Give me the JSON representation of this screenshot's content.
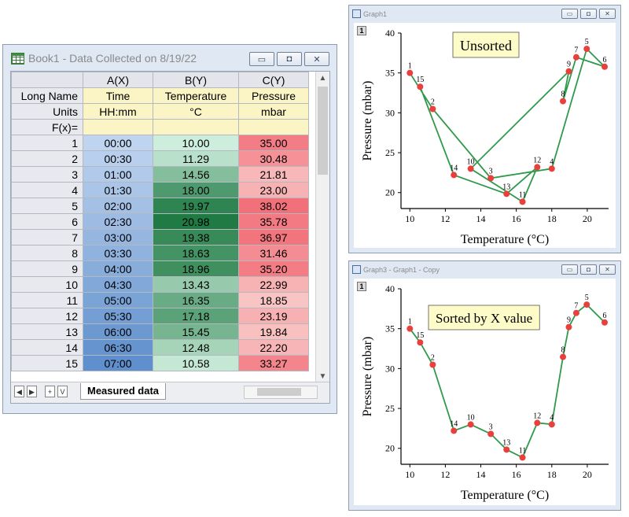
{
  "book": {
    "title": "Book1 - Data Collected on 8/19/22",
    "columns": [
      "A(X)",
      "B(Y)",
      "C(Y)"
    ],
    "meta_rows": [
      {
        "label": "Long Name",
        "values": [
          "Time",
          "Temperature",
          "Pressure"
        ]
      },
      {
        "label": "Units",
        "values": [
          "HH:mm",
          "°C",
          "mbar"
        ]
      },
      {
        "label": "F(x)=",
        "values": [
          "",
          "",
          ""
        ]
      }
    ],
    "rows": [
      {
        "n": "1",
        "time": "00:00",
        "temp": "10.00",
        "pres": "35.00"
      },
      {
        "n": "2",
        "time": "00:30",
        "temp": "11.29",
        "pres": "30.48"
      },
      {
        "n": "3",
        "time": "01:00",
        "temp": "14.56",
        "pres": "21.81"
      },
      {
        "n": "4",
        "time": "01:30",
        "temp": "18.00",
        "pres": "23.00"
      },
      {
        "n": "5",
        "time": "02:00",
        "temp": "19.97",
        "pres": "38.02"
      },
      {
        "n": "6",
        "time": "02:30",
        "temp": "20.98",
        "pres": "35.78"
      },
      {
        "n": "7",
        "time": "03:00",
        "temp": "19.38",
        "pres": "36.97"
      },
      {
        "n": "8",
        "time": "03:30",
        "temp": "18.63",
        "pres": "31.46"
      },
      {
        "n": "9",
        "time": "04:00",
        "temp": "18.96",
        "pres": "35.20"
      },
      {
        "n": "10",
        "time": "04:30",
        "temp": "13.43",
        "pres": "22.99"
      },
      {
        "n": "11",
        "time": "05:00",
        "temp": "16.35",
        "pres": "18.85"
      },
      {
        "n": "12",
        "time": "05:30",
        "temp": "17.18",
        "pres": "23.19"
      },
      {
        "n": "13",
        "time": "06:00",
        "temp": "15.45",
        "pres": "19.84"
      },
      {
        "n": "14",
        "time": "06:30",
        "temp": "12.48",
        "pres": "22.20"
      },
      {
        "n": "15",
        "time": "07:00",
        "temp": "10.58",
        "pres": "33.27"
      }
    ],
    "sheet_tab": "Measured data",
    "nav": [
      "◀",
      "▶",
      "+",
      "V"
    ]
  },
  "graph1": {
    "title": "Graph1",
    "layer": "1",
    "label": "Unsorted"
  },
  "graph3": {
    "title": "Graph3 - Graph1 - Copy",
    "layer": "1",
    "label": "Sorted by X value"
  },
  "colors": {
    "line": "#2f9a4b",
    "marker": "#e8413d",
    "label_bg": "#fdfbc8"
  },
  "chart_data": [
    {
      "type": "line",
      "title": "Unsorted",
      "xlabel": "Temperature (°C)",
      "ylabel": "Pressure (mbar)",
      "xlim": [
        9.5,
        21.2
      ],
      "ylim": [
        18,
        40
      ],
      "xticks": [
        10,
        12,
        14,
        16,
        18,
        20
      ],
      "yticks": [
        20,
        25,
        30,
        35,
        40
      ],
      "order": "row",
      "points": [
        {
          "label": "1",
          "x": 10.0,
          "y": 35.0
        },
        {
          "label": "2",
          "x": 11.29,
          "y": 30.48
        },
        {
          "label": "3",
          "x": 14.56,
          "y": 21.81
        },
        {
          "label": "4",
          "x": 18.0,
          "y": 23.0
        },
        {
          "label": "5",
          "x": 19.97,
          "y": 38.02
        },
        {
          "label": "6",
          "x": 20.98,
          "y": 35.78
        },
        {
          "label": "7",
          "x": 19.38,
          "y": 36.97
        },
        {
          "label": "8",
          "x": 18.63,
          "y": 31.46
        },
        {
          "label": "9",
          "x": 18.96,
          "y": 35.2
        },
        {
          "label": "10",
          "x": 13.43,
          "y": 22.99
        },
        {
          "label": "11",
          "x": 16.35,
          "y": 18.85
        },
        {
          "label": "12",
          "x": 17.18,
          "y": 23.19
        },
        {
          "label": "13",
          "x": 15.45,
          "y": 19.84
        },
        {
          "label": "14",
          "x": 12.48,
          "y": 22.2
        },
        {
          "label": "15",
          "x": 10.58,
          "y": 33.27
        }
      ]
    },
    {
      "type": "line",
      "title": "Sorted by X value",
      "xlabel": "Temperature (°C)",
      "ylabel": "Pressure (mbar)",
      "xlim": [
        9.5,
        21.2
      ],
      "ylim": [
        18,
        40
      ],
      "xticks": [
        10,
        12,
        14,
        16,
        18,
        20
      ],
      "yticks": [
        20,
        25,
        30,
        35,
        40
      ],
      "order": "x",
      "points": [
        {
          "label": "1",
          "x": 10.0,
          "y": 35.0
        },
        {
          "label": "2",
          "x": 11.29,
          "y": 30.48
        },
        {
          "label": "3",
          "x": 14.56,
          "y": 21.81
        },
        {
          "label": "4",
          "x": 18.0,
          "y": 23.0
        },
        {
          "label": "5",
          "x": 19.97,
          "y": 38.02
        },
        {
          "label": "6",
          "x": 20.98,
          "y": 35.78
        },
        {
          "label": "7",
          "x": 19.38,
          "y": 36.97
        },
        {
          "label": "8",
          "x": 18.63,
          "y": 31.46
        },
        {
          "label": "9",
          "x": 18.96,
          "y": 35.2
        },
        {
          "label": "10",
          "x": 13.43,
          "y": 22.99
        },
        {
          "label": "11",
          "x": 16.35,
          "y": 18.85
        },
        {
          "label": "12",
          "x": 17.18,
          "y": 23.19
        },
        {
          "label": "13",
          "x": 15.45,
          "y": 19.84
        },
        {
          "label": "14",
          "x": 12.48,
          "y": 22.2
        },
        {
          "label": "15",
          "x": 10.58,
          "y": 33.27
        }
      ]
    }
  ]
}
